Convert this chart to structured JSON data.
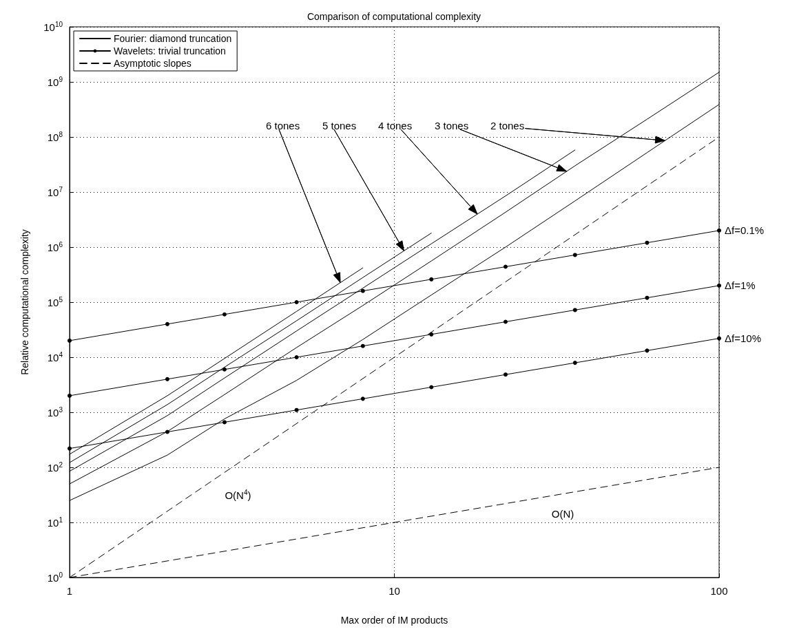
{
  "chart_data": {
    "type": "line",
    "title": "Comparison of computational complexity",
    "xlabel": "Max order of IM products",
    "ylabel": "Relative computational complexity",
    "log": "xy",
    "grid": true,
    "legend": "top left",
    "xlim": [
      1,
      100
    ],
    "xticks": [
      1,
      10,
      100
    ],
    "ylim": [
      1,
      10000000000
    ],
    "yticks": [
      {
        "value": 1,
        "label": "10$^{0}$"
      },
      {
        "value": 10,
        "label": "10$^{1}$"
      },
      {
        "value": 100,
        "label": "10$^{2}$"
      },
      {
        "value": 1000,
        "label": "10$^{3}$"
      },
      {
        "value": 10000,
        "label": "10$^{4}$"
      },
      {
        "value": 100000,
        "label": "10$^{5}$"
      },
      {
        "value": 1000000,
        "label": "10$^{6}$"
      },
      {
        "value": 10000000,
        "label": "10$^{7}$"
      },
      {
        "value": 100000000,
        "label": "10$^{8}$"
      },
      {
        "value": 1000000000,
        "label": "10$^{9}$"
      },
      {
        "value": 10000000000,
        "label": "10$^{10}$"
      }
    ],
    "series": [
      {
        "name": "Fourier: diamond truncation",
        "color": "#000000",
        "marker": "none",
        "line_style": "solid",
        "x": [
          1,
          2,
          3,
          5,
          8,
          13,
          22,
          36,
          60,
          100
        ],
        "values": [
          25,
          167,
          760,
          3800,
          21000,
          135000,
          1000000,
          6900000,
          52000000,
          390000000
        ]
      },
      {
        "color": "#000000",
        "marker": "none",
        "line_style": "solid",
        "x": [
          1,
          2,
          3,
          5,
          8,
          13,
          22,
          36,
          60,
          100
        ],
        "values": [
          50,
          447,
          2100,
          15000,
          87000,
          560000,
          4300000,
          30000000,
          210000000,
          1500000000
        ]
      },
      {
        "color": "#000000",
        "marker": "none",
        "line_style": "solid",
        "x": [
          1,
          2,
          3,
          5,
          8,
          13,
          22,
          36
        ],
        "values": [
          85,
          870,
          4200,
          30000,
          180000,
          1150000,
          8500000,
          58000000
        ]
      },
      {
        "color": "#000000",
        "marker": "none",
        "line_style": "solid",
        "x": [
          1,
          2,
          3,
          5,
          8,
          13
        ],
        "values": [
          122,
          1380,
          6600,
          46000,
          280000,
          1800000
        ]
      },
      {
        "color": "#000000",
        "marker": "none",
        "line_style": "solid",
        "x": [
          1,
          2,
          3,
          5,
          8
        ],
        "values": [
          173,
          2000,
          9500,
          68000,
          420000
        ]
      },
      {
        "name": "Wavelets: trivial truncation",
        "color": "#000000",
        "marker": "circle",
        "line_style": "solid",
        "x": [
          1,
          2,
          3,
          5,
          8,
          13,
          22,
          36,
          60,
          100
        ],
        "values": [
          20000,
          40000,
          60000,
          100000,
          160000,
          260000,
          440000,
          720000,
          1200000,
          2000000
        ]
      },
      {
        "color": "#000000",
        "marker": "circle",
        "line_style": "solid",
        "x": [
          1,
          2,
          3,
          5,
          8,
          13,
          22,
          36,
          60,
          100
        ],
        "values": [
          2000,
          4000,
          6000,
          10000,
          16000,
          26000,
          44000,
          72000,
          120000,
          200000
        ]
      },
      {
        "color": "#000000",
        "marker": "circle",
        "line_style": "solid",
        "x": [
          1,
          2,
          3,
          5,
          8,
          13,
          22,
          36,
          60,
          100
        ],
        "values": [
          220,
          440,
          660,
          1100,
          1760,
          2860,
          4840,
          7920,
          13200,
          22000
        ]
      },
      {
        "name": "Asymptotic slopes",
        "color": "#000000",
        "marker": "none",
        "line_style": "dashed",
        "x": [
          1,
          100
        ],
        "values": [
          1,
          100000000
        ]
      },
      {
        "color": "#000000",
        "marker": "none",
        "line_style": "dashed",
        "x": [
          1,
          100
        ],
        "values": [
          1,
          100
        ]
      }
    ],
    "annotations": [
      "6 tones",
      "5 tones",
      "4 tones",
      "3 tones",
      "2 tones",
      {
        "text": "Δf=0.1%",
        "x": 100,
        "y": 2000000
      },
      {
        "text": "Δf=1%",
        "x": 100,
        "y": 200000
      },
      {
        "text": "Δf=10%",
        "x": 100,
        "y": 22000
      },
      {
        "text": "O(N$^{4}$)",
        "x": 3.3,
        "y": 31
      },
      {
        "text": "O(N)",
        "x": 33,
        "y": 14
      }
    ]
  }
}
